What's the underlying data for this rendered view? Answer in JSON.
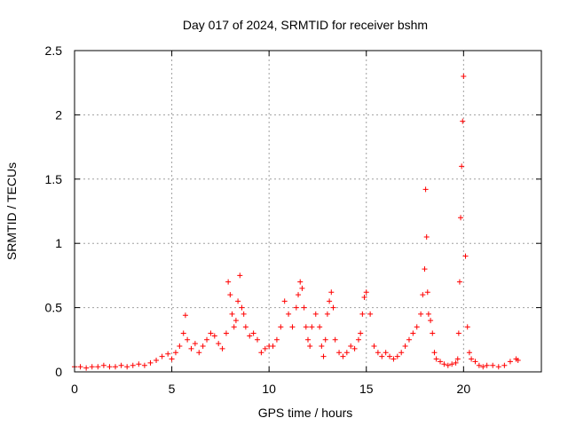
{
  "chart_data": {
    "type": "scatter",
    "title": "Day 017 of 2024, SRMTID for receiver bshm",
    "xlabel": "GPS time / hours",
    "ylabel": "SRMTID / TECUs",
    "xlim": [
      0,
      24
    ],
    "ylim": [
      0,
      2.5
    ],
    "x_ticks": [
      0,
      5,
      10,
      15,
      20
    ],
    "x_tick_labels": [
      "0",
      "5",
      "10",
      "15",
      "20"
    ],
    "y_ticks": [
      0,
      0.5,
      1,
      1.5,
      2,
      2.5
    ],
    "y_tick_labels": [
      "0",
      "0.5",
      "1",
      "1.5",
      "2",
      "2.5"
    ],
    "grid": true,
    "marker": "+",
    "color": "#ff0000",
    "series": [
      {
        "name": "SRMTID bshm",
        "x": [
          0.0,
          0.3,
          0.6,
          0.9,
          1.2,
          1.5,
          1.8,
          2.1,
          2.4,
          2.7,
          3.0,
          3.3,
          3.6,
          3.9,
          4.2,
          4.5,
          4.8,
          5.0,
          5.2,
          5.4,
          5.6,
          5.7,
          5.8,
          6.0,
          6.2,
          6.4,
          6.6,
          6.8,
          7.0,
          7.2,
          7.4,
          7.6,
          7.8,
          7.9,
          8.0,
          8.1,
          8.2,
          8.3,
          8.4,
          8.5,
          8.6,
          8.7,
          8.8,
          9.0,
          9.2,
          9.4,
          9.6,
          9.8,
          10.0,
          10.2,
          10.4,
          10.6,
          10.8,
          11.0,
          11.2,
          11.4,
          11.5,
          11.6,
          11.7,
          11.8,
          11.9,
          12.0,
          12.1,
          12.2,
          12.4,
          12.6,
          12.7,
          12.8,
          12.9,
          13.0,
          13.1,
          13.2,
          13.3,
          13.4,
          13.6,
          13.8,
          14.0,
          14.2,
          14.4,
          14.6,
          14.7,
          14.8,
          14.9,
          15.0,
          15.2,
          15.4,
          15.6,
          15.8,
          16.0,
          16.2,
          16.4,
          16.6,
          16.8,
          17.0,
          17.2,
          17.4,
          17.6,
          17.8,
          17.9,
          18.0,
          18.05,
          18.1,
          18.15,
          18.2,
          18.3,
          18.4,
          18.5,
          18.6,
          18.8,
          19.0,
          19.2,
          19.4,
          19.6,
          19.7,
          19.75,
          19.8,
          19.85,
          19.9,
          19.95,
          20.0,
          20.1,
          20.2,
          20.3,
          20.4,
          20.6,
          20.8,
          21.0,
          21.2,
          21.5,
          21.8,
          22.1,
          22.4,
          22.7,
          22.8
        ],
        "y": [
          0.04,
          0.04,
          0.03,
          0.04,
          0.04,
          0.05,
          0.04,
          0.04,
          0.05,
          0.04,
          0.05,
          0.06,
          0.05,
          0.07,
          0.09,
          0.12,
          0.14,
          0.1,
          0.15,
          0.2,
          0.3,
          0.44,
          0.25,
          0.18,
          0.22,
          0.15,
          0.2,
          0.25,
          0.3,
          0.28,
          0.22,
          0.18,
          0.3,
          0.7,
          0.6,
          0.45,
          0.35,
          0.4,
          0.55,
          0.75,
          0.5,
          0.45,
          0.35,
          0.28,
          0.3,
          0.25,
          0.15,
          0.18,
          0.2,
          0.2,
          0.25,
          0.35,
          0.55,
          0.45,
          0.35,
          0.5,
          0.6,
          0.7,
          0.65,
          0.5,
          0.35,
          0.25,
          0.2,
          0.35,
          0.45,
          0.35,
          0.2,
          0.12,
          0.25,
          0.45,
          0.55,
          0.62,
          0.5,
          0.25,
          0.15,
          0.12,
          0.15,
          0.2,
          0.18,
          0.25,
          0.3,
          0.45,
          0.58,
          0.62,
          0.45,
          0.2,
          0.15,
          0.12,
          0.15,
          0.12,
          0.1,
          0.12,
          0.15,
          0.2,
          0.25,
          0.3,
          0.35,
          0.45,
          0.6,
          0.8,
          1.42,
          1.05,
          0.62,
          0.45,
          0.4,
          0.3,
          0.15,
          0.1,
          0.08,
          0.06,
          0.05,
          0.06,
          0.07,
          0.1,
          0.3,
          0.7,
          1.2,
          1.6,
          1.95,
          2.3,
          0.9,
          0.35,
          0.15,
          0.1,
          0.08,
          0.05,
          0.04,
          0.05,
          0.05,
          0.04,
          0.05,
          0.08,
          0.1,
          0.09
        ]
      }
    ]
  }
}
